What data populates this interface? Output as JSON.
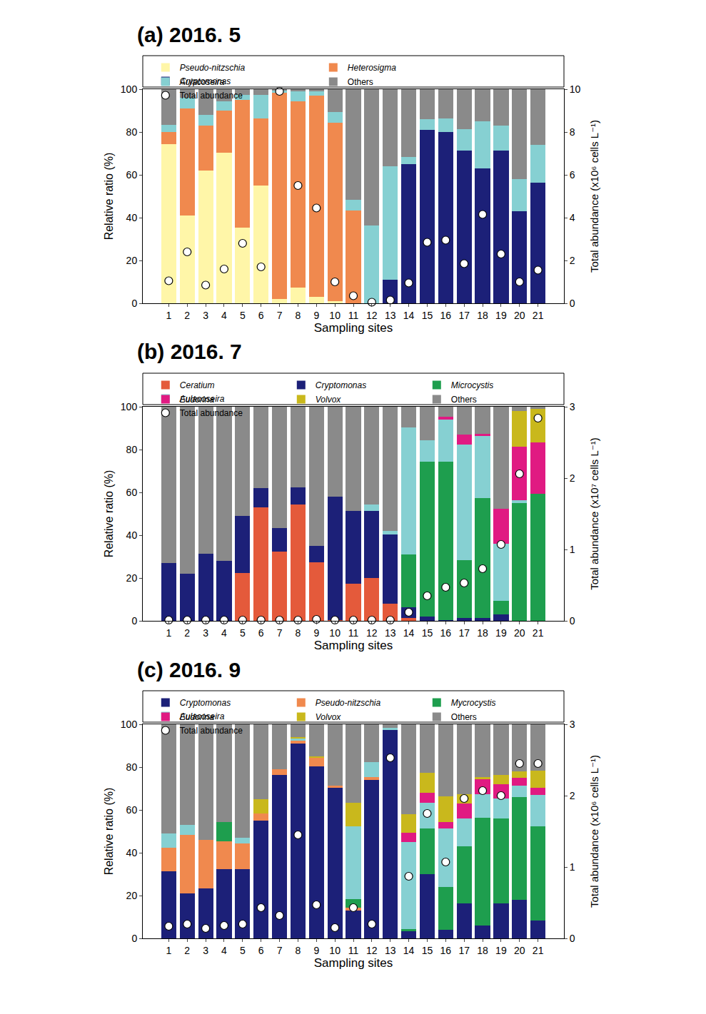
{
  "chart_data": [
    {
      "type": "bar",
      "title": "(a) 2016. 5",
      "stacked": true,
      "grid": false,
      "legend": "top",
      "xlabel": "Sampling sites",
      "ylabel": "Relative ratio (%)",
      "y2label": "Total abundance (x10⁶ cells L⁻¹)",
      "categories": [
        "1",
        "2",
        "3",
        "4",
        "5",
        "6",
        "7",
        "8",
        "9",
        "10",
        "11",
        "12",
        "13",
        "14",
        "15",
        "16",
        "17",
        "18",
        "19",
        "20",
        "21"
      ],
      "ylim": [
        0,
        100
      ],
      "yticks": [
        0,
        20,
        40,
        60,
        80,
        100
      ],
      "y2lim": [
        0,
        10
      ],
      "y2ticks": [
        0,
        2,
        4,
        6,
        8,
        10
      ],
      "series": [
        {
          "name": "Pseudo-nitzschia",
          "color": "#fff6a8",
          "values": [
            74.5,
            41,
            62,
            70.5,
            35.5,
            55,
            2,
            7.5,
            3,
            1,
            0,
            0,
            0,
            0,
            0,
            0,
            0,
            0,
            0,
            0,
            0
          ]
        },
        {
          "name": "Heterosigma",
          "color": "#f0894e",
          "values": [
            5.5,
            50,
            21,
            19.5,
            59.5,
            31.5,
            96.5,
            87,
            94,
            83.5,
            43.5,
            0,
            0,
            0,
            0,
            0,
            0,
            0,
            0,
            0,
            0
          ]
        },
        {
          "name": "Cryptomonas",
          "color": "#1c2078",
          "values": [
            0,
            0,
            0,
            0,
            0,
            0,
            0,
            0,
            0,
            0,
            0,
            0,
            11,
            65,
            81,
            80,
            71.5,
            63,
            71.5,
            43,
            56.5
          ]
        },
        {
          "name": "Aulacoseira",
          "color": "#86d0d2",
          "values": [
            3.5,
            5,
            5,
            4.5,
            2.5,
            11,
            1,
            4.5,
            2,
            5,
            5,
            36.5,
            53,
            3.5,
            5,
            6.5,
            10,
            22,
            11.5,
            15,
            17.5
          ]
        },
        {
          "name": "Others",
          "color": "#8a8a8a",
          "values": [
            16.5,
            4,
            12,
            5.5,
            2.5,
            2.5,
            0.5,
            1,
            1,
            10.5,
            51.5,
            63.5,
            36,
            31.5,
            14,
            13.5,
            18.5,
            15,
            17,
            42,
            26
          ]
        },
        {
          "name": "Total abundance",
          "type": "scatter",
          "axis": "y2",
          "marker": "circle",
          "color": "#ffffff",
          "values": [
            1.05,
            2.4,
            0.85,
            1.6,
            2.8,
            1.7,
            9.9,
            5.5,
            4.45,
            1.0,
            0.35,
            0.05,
            0.15,
            0.95,
            2.85,
            2.95,
            1.85,
            4.15,
            2.3,
            1.0,
            1.55
          ]
        }
      ]
    },
    {
      "type": "bar",
      "title": "(b) 2016. 7",
      "stacked": true,
      "grid": false,
      "legend": "top",
      "xlabel": "Sampling sites",
      "ylabel": "Relative ratio (%)",
      "y2label": "Total abundance (x10⁷ cells L⁻¹)",
      "categories": [
        "1",
        "2",
        "3",
        "4",
        "5",
        "6",
        "7",
        "8",
        "9",
        "10",
        "11",
        "12",
        "13",
        "14",
        "15",
        "16",
        "17",
        "18",
        "19",
        "20",
        "21"
      ],
      "ylim": [
        0,
        100
      ],
      "yticks": [
        0,
        20,
        40,
        60,
        80,
        100
      ],
      "y2lim": [
        0,
        3
      ],
      "y2ticks": [
        0,
        1,
        2,
        3
      ],
      "series": [
        {
          "name": "Ceratium",
          "color": "#e45a3b",
          "values": [
            0,
            0,
            0,
            0,
            22.5,
            53,
            32.5,
            54.5,
            27.5,
            0.5,
            17.5,
            20,
            8,
            1.5,
            0,
            0,
            0,
            0,
            0,
            0,
            0
          ]
        },
        {
          "name": "Cryptomonas",
          "color": "#1c2078",
          "values": [
            27,
            22,
            31.5,
            28,
            26.5,
            9,
            11,
            8,
            7.5,
            57.5,
            34,
            31.5,
            32.5,
            5,
            2,
            0.5,
            1.5,
            1.5,
            3,
            0,
            0
          ]
        },
        {
          "name": "Microcystis",
          "color": "#1e9e4e",
          "values": [
            0,
            0,
            0,
            0,
            0,
            0,
            0,
            0,
            0,
            0,
            0,
            0,
            0,
            24.5,
            72.5,
            74,
            27,
            56,
            6.5,
            55,
            59.5
          ]
        },
        {
          "name": "Aulacoseira",
          "color": "#86d0d2",
          "values": [
            0,
            0,
            0,
            0,
            0,
            0,
            0,
            0,
            0,
            0,
            0,
            3,
            1.5,
            59.5,
            10,
            19.5,
            54,
            29,
            26.5,
            1.5,
            0
          ]
        },
        {
          "name": "Eudorina",
          "color": "#e01a82",
          "values": [
            0,
            0,
            0,
            0,
            0,
            0,
            0,
            0,
            0,
            0,
            0,
            0,
            0,
            0,
            0,
            1.5,
            4.5,
            1,
            16.5,
            25,
            24
          ]
        },
        {
          "name": "Volvox",
          "color": "#c9b81c",
          "values": [
            0,
            0,
            0,
            0,
            0,
            0,
            0,
            0,
            0,
            0,
            0,
            0,
            0,
            0,
            0,
            0,
            0,
            0,
            0,
            16.5,
            15.5
          ]
        },
        {
          "name": "Others",
          "color": "#8a8a8a",
          "values": [
            73,
            78,
            68.5,
            72,
            51,
            38,
            56.5,
            37.5,
            65,
            42,
            48.5,
            45.5,
            58,
            9.5,
            15.5,
            4.5,
            13,
            12.5,
            47.5,
            2,
            1
          ]
        },
        {
          "name": "Total abundance",
          "type": "scatter",
          "axis": "y2",
          "marker": "circle",
          "color": "#ffffff",
          "values": [
            0.01,
            0.01,
            0.01,
            0.01,
            0.01,
            0.01,
            0.01,
            0.01,
            0.02,
            0.01,
            0.01,
            0.01,
            0.01,
            0.12,
            0.35,
            0.47,
            0.53,
            0.73,
            1.07,
            2.06,
            2.84
          ]
        }
      ]
    },
    {
      "type": "bar",
      "title": "(c) 2016. 9",
      "stacked": true,
      "grid": false,
      "legend": "top",
      "xlabel": "Sampling sites",
      "ylabel": "Relative ratio (%)",
      "y2label": "Total abundance (x10⁶ cells L⁻¹)",
      "categories": [
        "1",
        "2",
        "3",
        "4",
        "5",
        "6",
        "7",
        "8",
        "9",
        "10",
        "11",
        "12",
        "13",
        "14",
        "15",
        "16",
        "17",
        "18",
        "19",
        "20",
        "21"
      ],
      "ylim": [
        0,
        100
      ],
      "yticks": [
        0,
        20,
        40,
        60,
        80,
        100
      ],
      "y2lim": [
        0,
        3
      ],
      "y2ticks": [
        0,
        1,
        2,
        3
      ],
      "series": [
        {
          "name": "Cryptomonas",
          "color": "#1c2078",
          "values": [
            31.5,
            21,
            23.5,
            32.5,
            32.5,
            55,
            76.5,
            91,
            80.5,
            70.5,
            13,
            74,
            97.5,
            3.5,
            30,
            4,
            16.5,
            6,
            16.5,
            18,
            8.5
          ]
        },
        {
          "name": "Pseudo-nitzschia",
          "color": "#f0894e",
          "values": [
            11,
            27.5,
            22.5,
            13,
            12,
            3.5,
            2.5,
            1.5,
            4,
            1,
            1.5,
            1.5,
            0,
            0,
            0,
            0,
            0,
            0,
            0,
            0,
            0
          ]
        },
        {
          "name": "Mycrocystis",
          "color": "#1e9e4e",
          "values": [
            0,
            0,
            0,
            9,
            0,
            0,
            0,
            0,
            0,
            0,
            4,
            0,
            0,
            1,
            21.5,
            20,
            26.5,
            50.5,
            39.5,
            48,
            44
          ]
        },
        {
          "name": "Aulacoseira",
          "color": "#86d0d2",
          "values": [
            6.5,
            4.5,
            0,
            0,
            2.5,
            0,
            0,
            1,
            0,
            0,
            34,
            7,
            1,
            40.5,
            12,
            27.5,
            13,
            11,
            9.5,
            5.5,
            14.5
          ]
        },
        {
          "name": "Eudorina",
          "color": "#e01a82",
          "values": [
            0,
            0,
            0,
            0,
            0,
            0,
            0,
            0,
            0,
            0,
            0,
            0,
            0,
            4.5,
            4.5,
            3,
            7,
            7,
            6.5,
            3.5,
            3.5
          ]
        },
        {
          "name": "Volvox",
          "color": "#c9b81c",
          "values": [
            0,
            0,
            0,
            0,
            0,
            6.5,
            0,
            0.5,
            0.5,
            0,
            11,
            0,
            0,
            8.5,
            9.5,
            12,
            4.5,
            1,
            4.5,
            3,
            8
          ]
        },
        {
          "name": "Others",
          "color": "#8a8a8a",
          "values": [
            51,
            47,
            54,
            45.5,
            53,
            35,
            21,
            6,
            15,
            28.5,
            36.5,
            17.5,
            1.5,
            42,
            22.5,
            33.5,
            32.5,
            24.5,
            23.5,
            22,
            21.5
          ]
        },
        {
          "name": "Total abundance",
          "type": "scatter",
          "axis": "y2",
          "marker": "circle",
          "color": "#ffffff",
          "values": [
            0.17,
            0.2,
            0.14,
            0.18,
            0.2,
            0.43,
            0.32,
            1.45,
            0.47,
            0.15,
            0.43,
            0.2,
            2.53,
            0.87,
            1.75,
            1.07,
            1.96,
            2.07,
            2.0,
            2.45,
            2.45
          ]
        }
      ]
    }
  ]
}
